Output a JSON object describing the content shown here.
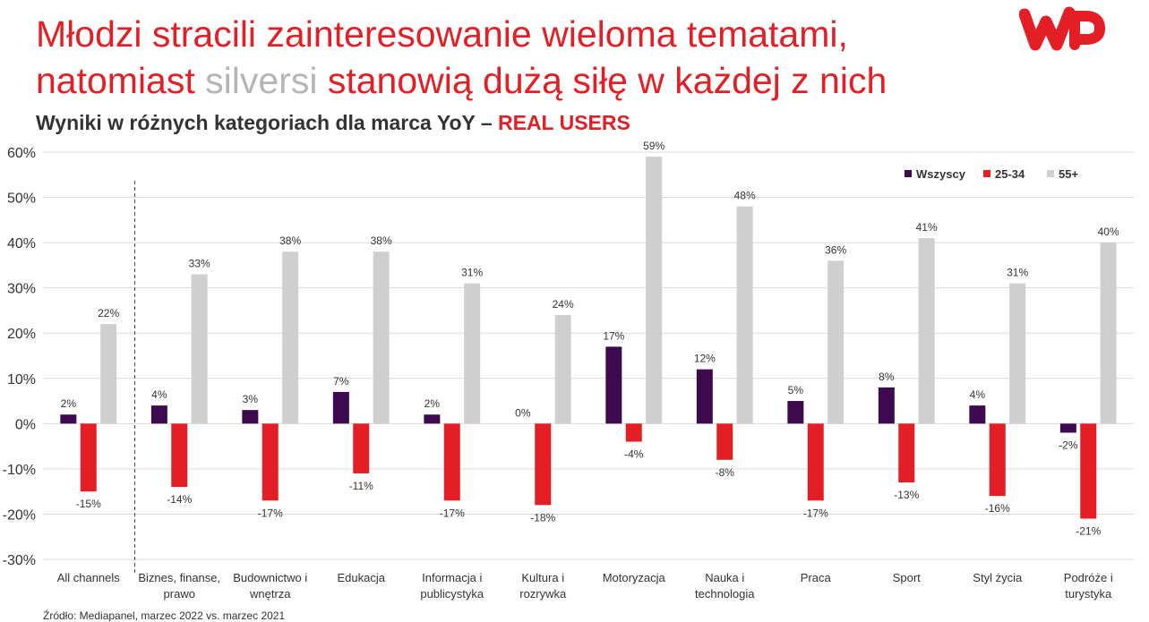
{
  "header": {
    "title_line1": "Młodzi stracili zainteresowanie wieloma tematami,",
    "title_line2_part1": "natomiast ",
    "title_line2_grey": "silversi",
    "title_line2_part3": " stanowią dużą siłę w każdej z nich",
    "subtitle_main": "Wyniki w różnych kategoriach dla marca YoY – ",
    "subtitle_highlight": "REAL USERS"
  },
  "logo": {
    "name": "wp-logo",
    "color": "#e31e24"
  },
  "footer": {
    "source": "Źródło: Mediapanel, marzec 2022 vs. marzec 2021"
  },
  "chart_data": {
    "type": "bar",
    "categories": [
      [
        "All channels"
      ],
      [
        "Biznes, finanse,",
        "prawo"
      ],
      [
        "Budownictwo i",
        "wnętrza"
      ],
      [
        "Edukacja"
      ],
      [
        "Informacja i",
        "publicystyka"
      ],
      [
        "Kultura i",
        "rozrywka"
      ],
      [
        "Motoryzacja"
      ],
      [
        "Nauka i",
        "technologia"
      ],
      [
        "Praca"
      ],
      [
        "Sport"
      ],
      [
        "Styl życia"
      ],
      [
        "Podróże i",
        "turystyka"
      ]
    ],
    "series": [
      {
        "name": "Wszyscy",
        "color": "#3d0a4f",
        "values": [
          2,
          4,
          3,
          7,
          2,
          0,
          17,
          12,
          5,
          8,
          4,
          -2
        ]
      },
      {
        "name": "25-34",
        "color": "#e31e24",
        "values": [
          -15,
          -14,
          -17,
          -11,
          -17,
          -18,
          -4,
          -8,
          -17,
          -13,
          -16,
          -21
        ]
      },
      {
        "name": "55+",
        "color": "#cfcfcf",
        "values": [
          22,
          33,
          38,
          38,
          31,
          24,
          59,
          48,
          36,
          41,
          31,
          40
        ]
      }
    ],
    "ylim": [
      -30,
      60
    ],
    "yticks": [
      60,
      50,
      40,
      30,
      20,
      10,
      0,
      -10,
      -20,
      -30
    ],
    "ytick_format": "percent",
    "grid": true,
    "legend_position": "top-right",
    "separator_after_first_category": true
  }
}
